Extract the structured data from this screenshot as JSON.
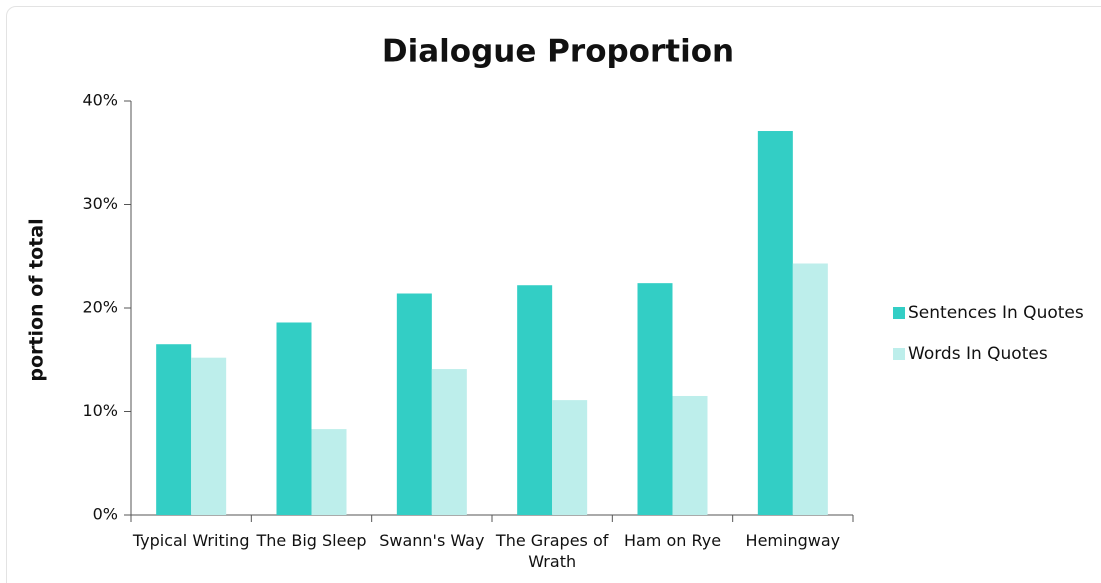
{
  "chart_data": {
    "type": "bar",
    "title": "Dialogue Proportion",
    "y_label": "portion of total",
    "categories": [
      "Typical Writing",
      "The Big Sleep",
      "Swann's Way",
      "The Grapes of Wrath",
      "Ham on Rye",
      "Hemingway"
    ],
    "series": [
      {
        "name": "Sentences In Quotes",
        "color": "#33cec5",
        "values": [
          16.5,
          18.6,
          21.4,
          22.2,
          22.4,
          37.1
        ]
      },
      {
        "name": "Words In Quotes",
        "color": "#bdeeeb",
        "values": [
          15.2,
          8.3,
          14.1,
          11.1,
          11.5,
          24.3
        ]
      }
    ],
    "ylim": [
      0,
      40
    ],
    "yticks": [
      {
        "value": 0,
        "label": "0%"
      },
      {
        "value": 10,
        "label": "10%"
      },
      {
        "value": 20,
        "label": "20%"
      },
      {
        "value": 30,
        "label": "30%"
      },
      {
        "value": 40,
        "label": "40%"
      }
    ],
    "grid": false,
    "legend": "right"
  }
}
